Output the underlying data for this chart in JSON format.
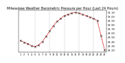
{
  "title": "Milwaukee Weather Barometric Pressure per Hour (Last 24 Hours)",
  "pressure_values": [
    29.42,
    29.38,
    29.35,
    29.3,
    29.28,
    29.32,
    29.4,
    29.52,
    29.65,
    29.78,
    29.88,
    29.95,
    30.02,
    30.05,
    30.08,
    30.1,
    30.08,
    30.05,
    30.02,
    29.98,
    29.95,
    29.9,
    29.55,
    29.2
  ],
  "hours": [
    "1",
    "2",
    "3",
    "4",
    "5",
    "6",
    "7",
    "8",
    "9",
    "10",
    "11",
    "12",
    "13",
    "14",
    "15",
    "16",
    "17",
    "18",
    "19",
    "20",
    "21",
    "22",
    "23",
    "24"
  ],
  "line_color": "#cc0000",
  "marker_color": "#111111",
  "bg_color": "#ffffff",
  "grid_color": "#888888",
  "ylim_min": 29.15,
  "ylim_max": 30.15,
  "ytick_values": [
    29.2,
    29.3,
    29.4,
    29.5,
    29.6,
    29.7,
    29.8,
    29.9,
    30.0,
    30.1
  ],
  "title_fontsize": 3.5,
  "tick_fontsize": 2.5
}
